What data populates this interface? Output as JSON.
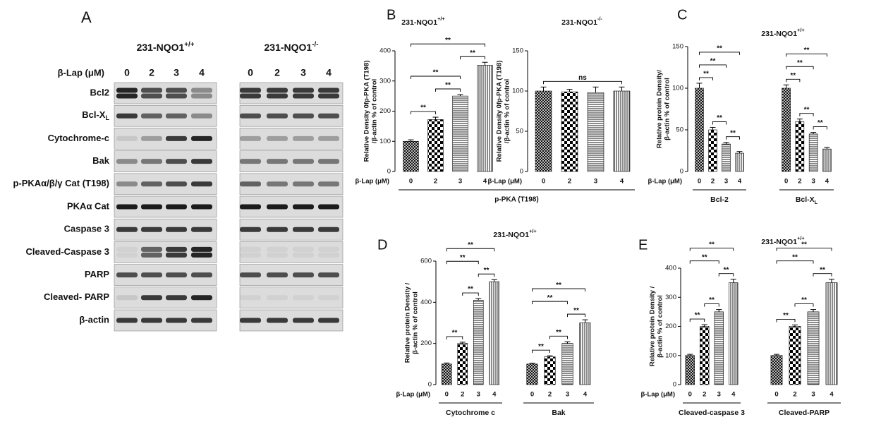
{
  "panel_a": {
    "label": "A",
    "dose_label": "β-Lap (μM)",
    "lines": [
      {
        "name": {
          "text": "231-NQO1",
          "sup": "+/+"
        },
        "doses": [
          "0",
          "2",
          "3",
          "4"
        ]
      },
      {
        "name": {
          "text": "231-NQO1",
          "sup": "-/-"
        },
        "doses": [
          "0",
          "2",
          "3",
          "4"
        ]
      }
    ],
    "rows": [
      "Bcl2",
      {
        "text": "Bcl-X",
        "sub": "L"
      },
      "Cytochrome-c",
      "Bak",
      "p-PKAα/β/γ Cat (T198)",
      "PKAα Cat",
      "Caspase 3",
      "Cleaved-Caspase 3",
      "PARP",
      "Cleaved- PARP",
      "β-actin"
    ]
  },
  "chart_data": [
    {
      "type": "bar",
      "panel": "B",
      "title": {
        "text": "231-NQO1",
        "sup": "+/+"
      },
      "ylabel": [
        "Relative  Density 0fp-PKA (T198)",
        "/β-actin % of control"
      ],
      "xlabel": "β-Lap (μM)",
      "ylim": [
        0,
        400
      ],
      "yticks": [
        0,
        100,
        200,
        300,
        400
      ],
      "fills": [
        "crosshatch",
        "checker",
        "hlines",
        "vlines"
      ],
      "footer": "p-PKA (T198)",
      "groups": [
        {
          "categories": [
            "0",
            "2",
            "3",
            "4"
          ],
          "values": [
            100,
            172,
            250,
            352
          ],
          "errors": [
            5,
            8,
            5,
            10
          ],
          "annotations": [
            {
              "from": "0",
              "to": "2",
              "label": "**"
            },
            {
              "from": "2",
              "to": "3",
              "label": "**"
            },
            {
              "from": "0",
              "to": "3",
              "label": "**"
            },
            {
              "from": "3",
              "to": "4",
              "label": "**"
            },
            {
              "from": "0",
              "to": "4",
              "label": "**"
            }
          ]
        }
      ]
    },
    {
      "type": "bar",
      "title": {
        "text": "231-NQO1",
        "sup": "-/-"
      },
      "ylabel": [
        "Relative  Density 0fp-PKA (T198)",
        "/β-actin % of control"
      ],
      "xlabel": "β-Lap (μM)",
      "ylim": [
        0,
        150
      ],
      "yticks": [
        0,
        50,
        100,
        150
      ],
      "fills": [
        "crosshatch",
        "checker",
        "hlines",
        "vlines"
      ],
      "groups": [
        {
          "categories": [
            "0",
            "2",
            "3",
            "4"
          ],
          "values": [
            100,
            99,
            98,
            100
          ],
          "errors": [
            5,
            3,
            7,
            5
          ],
          "annotations": [
            {
              "from": "0",
              "to": "4",
              "label": "ns"
            }
          ]
        }
      ]
    },
    {
      "type": "bar",
      "panel": "C",
      "title": {
        "text": "231-NQO1",
        "sup": "+/+"
      },
      "ylabel": [
        "Relative protein Density/",
        "β-actin % of control"
      ],
      "xlabel": "β-Lap (μM)",
      "ylim": [
        0,
        150
      ],
      "yticks": [
        0,
        50,
        100,
        150
      ],
      "fills": [
        "crosshatch",
        "checker",
        "hlines",
        "vlines"
      ],
      "groups": [
        {
          "name": "Bcl-2",
          "categories": [
            "0",
            "2",
            "3",
            "4"
          ],
          "values": [
            100,
            50,
            33,
            22
          ],
          "errors": [
            6,
            3,
            2,
            2
          ],
          "annotations": [
            {
              "from": "3",
              "to": "4",
              "label": "**"
            },
            {
              "from": "2",
              "to": "3",
              "label": "**"
            },
            {
              "from": "0",
              "to": "2",
              "label": "**"
            },
            {
              "from": "0",
              "to": "3",
              "label": "**"
            },
            {
              "from": "0",
              "to": "4",
              "label": "**"
            }
          ]
        },
        {
          "name": {
            "text": "Bcl-X",
            "sub": "L"
          },
          "categories": [
            "0",
            "2",
            "3",
            "4"
          ],
          "values": [
            100,
            60,
            45,
            27
          ],
          "errors": [
            4,
            3,
            2,
            2
          ],
          "annotations": [
            {
              "from": "3",
              "to": "4",
              "label": "**"
            },
            {
              "from": "2",
              "to": "3",
              "label": "**"
            },
            {
              "from": "0",
              "to": "2",
              "label": "**"
            },
            {
              "from": "0",
              "to": "3",
              "label": "**"
            },
            {
              "from": "0",
              "to": "4",
              "label": "**"
            }
          ]
        }
      ]
    },
    {
      "type": "bar",
      "panel": "D",
      "title": {
        "text": "231-NQO1",
        "sup": "+/+"
      },
      "ylabel": [
        "Relative protein Density /",
        "β-actin % of control"
      ],
      "xlabel": "β-Lap (μM)",
      "ylim": [
        0,
        600
      ],
      "yticks": [
        0,
        200,
        400,
        600
      ],
      "fills": [
        "crosshatch",
        "checker",
        "hlines",
        "vlines"
      ],
      "groups": [
        {
          "name": "Cytochrome c",
          "categories": [
            "0",
            "2",
            "3",
            "4"
          ],
          "values": [
            100,
            200,
            410,
            500
          ],
          "errors": [
            5,
            6,
            8,
            10
          ],
          "annotations": [
            {
              "from": "0",
              "to": "2",
              "label": "**"
            },
            {
              "from": "2",
              "to": "3",
              "label": "**"
            },
            {
              "from": "3",
              "to": "4",
              "label": "**"
            },
            {
              "from": "0",
              "to": "3",
              "label": "**"
            },
            {
              "from": "0",
              "to": "4",
              "label": "**"
            }
          ]
        },
        {
          "name": "Bak",
          "categories": [
            "0",
            "2",
            "3",
            "4"
          ],
          "values": [
            100,
            135,
            200,
            300
          ],
          "errors": [
            4,
            5,
            8,
            15
          ],
          "annotations": [
            {
              "from": "0",
              "to": "2",
              "label": "**"
            },
            {
              "from": "2",
              "to": "3",
              "label": "**"
            },
            {
              "from": "3",
              "to": "4",
              "label": "**"
            },
            {
              "from": "0",
              "to": "3",
              "label": "**"
            },
            {
              "from": "0",
              "to": "4",
              "label": "**"
            }
          ]
        }
      ]
    },
    {
      "type": "bar",
      "panel": "E",
      "title": {
        "text": "231-NQO1",
        "sup": "+/+"
      },
      "ylabel": [
        "Relative protein Density /",
        "β-actin % of control"
      ],
      "xlabel": "β-Lap (μM)",
      "ylim": [
        0,
        400
      ],
      "yticks": [
        0,
        100,
        200,
        300,
        400
      ],
      "fills": [
        "crosshatch",
        "checker",
        "hlines",
        "vlines"
      ],
      "groups": [
        {
          "name": "Cleaved-caspase 3",
          "categories": [
            "0",
            "2",
            "3",
            "4"
          ],
          "values": [
            100,
            200,
            250,
            350
          ],
          "errors": [
            4,
            6,
            8,
            12
          ],
          "annotations": [
            {
              "from": "0",
              "to": "2",
              "label": "**"
            },
            {
              "from": "2",
              "to": "3",
              "label": "**"
            },
            {
              "from": "3",
              "to": "4",
              "label": "**"
            },
            {
              "from": "0",
              "to": "3",
              "label": "**"
            },
            {
              "from": "0",
              "to": "4",
              "label": "**"
            }
          ]
        },
        {
          "name": "Cleaved-PARP",
          "categories": [
            "0",
            "2",
            "3",
            "4"
          ],
          "values": [
            100,
            200,
            250,
            350
          ],
          "errors": [
            4,
            5,
            8,
            12
          ],
          "annotations": [
            {
              "from": "0",
              "to": "2",
              "label": "**"
            },
            {
              "from": "2",
              "to": "3",
              "label": "**"
            },
            {
              "from": "3",
              "to": "4",
              "label": "**"
            },
            {
              "from": "0",
              "to": "3",
              "label": "**"
            },
            {
              "from": "0",
              "to": "4",
              "label": "**"
            }
          ]
        }
      ]
    }
  ]
}
